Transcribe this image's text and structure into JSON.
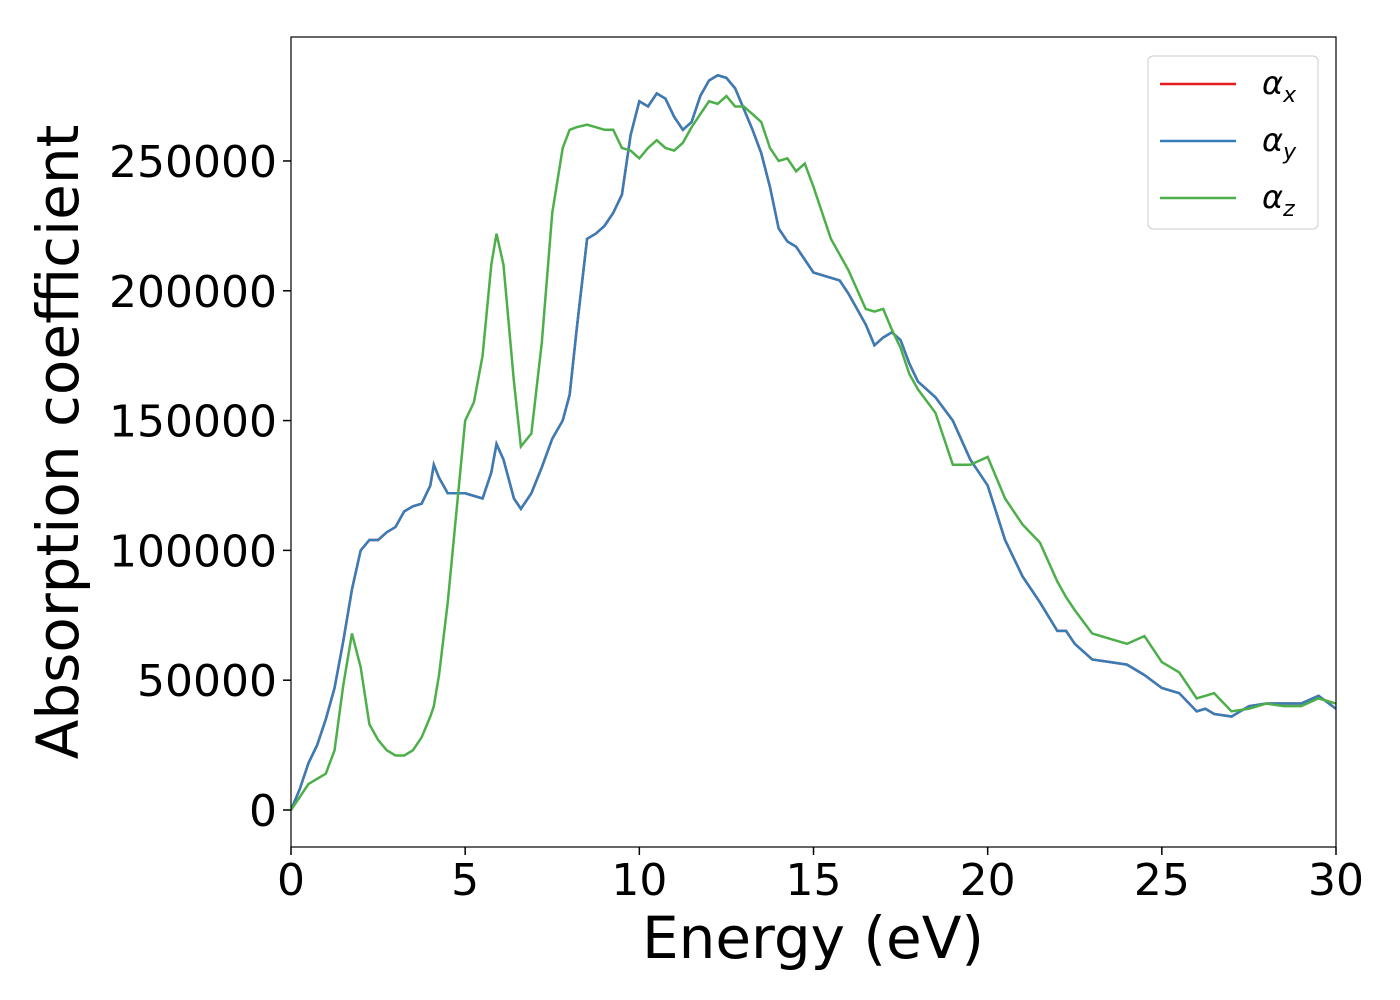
{
  "chart_data": {
    "type": "line",
    "x_label": "Energy (eV)",
    "y_label": "Absorption coefficient",
    "x": [
      0,
      0.25,
      0.5,
      0.75,
      1.0,
      1.25,
      1.5,
      1.75,
      2.0,
      2.25,
      2.5,
      2.75,
      3.0,
      3.25,
      3.5,
      3.75,
      4.0,
      4.1,
      4.25,
      4.5,
      5.0,
      5.25,
      5.5,
      5.75,
      5.9,
      6.1,
      6.4,
      6.6,
      6.9,
      7.2,
      7.5,
      7.8,
      8.0,
      8.2,
      8.5,
      8.75,
      9.0,
      9.25,
      9.5,
      9.75,
      10.0,
      10.25,
      10.5,
      10.75,
      11.0,
      11.25,
      11.5,
      11.75,
      12.0,
      12.25,
      12.5,
      12.75,
      13.0,
      13.25,
      13.5,
      13.75,
      14.0,
      14.25,
      14.5,
      14.75,
      15.0,
      15.5,
      15.75,
      16.0,
      16.5,
      16.75,
      17.0,
      17.25,
      17.5,
      17.75,
      18.0,
      18.5,
      19.0,
      19.5,
      20.0,
      20.5,
      21.0,
      21.5,
      22.0,
      22.25,
      22.5,
      23.0,
      23.5,
      24.0,
      24.5,
      25.0,
      25.5,
      26.0,
      26.25,
      26.5,
      27.0,
      27.5,
      28.0,
      28.5,
      29.0,
      29.5,
      30.0
    ],
    "series": [
      {
        "name": "αx",
        "color": "#e41a1c",
        "values": [
          0,
          8000,
          18000,
          25000,
          35000,
          47000,
          65000,
          85000,
          100000,
          104000,
          104000,
          107000,
          109000,
          115000,
          117000,
          118000,
          125000,
          133000,
          128000,
          122000,
          122000,
          121000,
          120000,
          130000,
          141000,
          135000,
          120000,
          116000,
          122000,
          132000,
          143000,
          150000,
          160000,
          185000,
          220000,
          222000,
          225000,
          230000,
          237000,
          260000,
          273000,
          271000,
          276000,
          274000,
          267000,
          262000,
          265000,
          275000,
          281000,
          283000,
          282000,
          278000,
          270000,
          262000,
          253000,
          240000,
          224000,
          219000,
          217000,
          212000,
          207000,
          205000,
          204000,
          199000,
          187000,
          179000,
          182000,
          184000,
          181000,
          172000,
          165000,
          159000,
          150000,
          135000,
          125000,
          104000,
          90000,
          80000,
          69000,
          69000,
          64000,
          58000,
          57000,
          56000,
          52000,
          47000,
          45000,
          38000,
          39000,
          37000,
          36000,
          40000,
          41000,
          41000,
          41000,
          44000,
          39000
        ]
      },
      {
        "name": "αy",
        "color": "#377eb8",
        "values": [
          0,
          8000,
          18000,
          25000,
          35000,
          47000,
          65000,
          85000,
          100000,
          104000,
          104000,
          107000,
          109000,
          115000,
          117000,
          118000,
          125000,
          133000,
          128000,
          122000,
          122000,
          121000,
          120000,
          130000,
          141000,
          135000,
          120000,
          116000,
          122000,
          132000,
          143000,
          150000,
          160000,
          185000,
          220000,
          222000,
          225000,
          230000,
          237000,
          260000,
          273000,
          271000,
          276000,
          274000,
          267000,
          262000,
          265000,
          275000,
          281000,
          283000,
          282000,
          278000,
          270000,
          262000,
          253000,
          240000,
          224000,
          219000,
          217000,
          212000,
          207000,
          205000,
          204000,
          199000,
          187000,
          179000,
          182000,
          184000,
          181000,
          172000,
          165000,
          159000,
          150000,
          135000,
          125000,
          104000,
          90000,
          80000,
          69000,
          69000,
          64000,
          58000,
          57000,
          56000,
          52000,
          47000,
          45000,
          38000,
          39000,
          37000,
          36000,
          40000,
          41000,
          41000,
          41000,
          44000,
          39000
        ]
      },
      {
        "name": "αz",
        "color": "#4daf4a",
        "values": [
          0,
          5000,
          10000,
          12000,
          14000,
          23000,
          48000,
          68000,
          55000,
          33000,
          27000,
          23000,
          21000,
          21000,
          23000,
          28000,
          36000,
          40000,
          52000,
          80000,
          150000,
          157000,
          175000,
          210000,
          222000,
          210000,
          165000,
          140000,
          145000,
          180000,
          230000,
          255000,
          262000,
          263000,
          264000,
          263000,
          262000,
          262000,
          255000,
          254000,
          251000,
          255000,
          258000,
          255000,
          254000,
          257000,
          263000,
          268000,
          273000,
          272000,
          275000,
          271000,
          271000,
          268000,
          265000,
          255000,
          250000,
          251000,
          246000,
          249000,
          240000,
          220000,
          214000,
          208000,
          193000,
          192000,
          193000,
          185000,
          178000,
          168000,
          162000,
          153000,
          133000,
          133000,
          136000,
          120000,
          110000,
          103000,
          88000,
          82000,
          77000,
          68000,
          66000,
          64000,
          67000,
          57000,
          53000,
          43000,
          44000,
          45000,
          38000,
          39000,
          41000,
          40000,
          40000,
          43000,
          41000
        ]
      }
    ],
    "xlim": [
      0,
      30
    ],
    "xticks": [
      0,
      5,
      10,
      15,
      20,
      25,
      30
    ],
    "ylim": [
      -14250,
      297750
    ],
    "yticks": [
      0,
      50000,
      100000,
      150000,
      200000,
      250000
    ],
    "legend": "upper right"
  }
}
